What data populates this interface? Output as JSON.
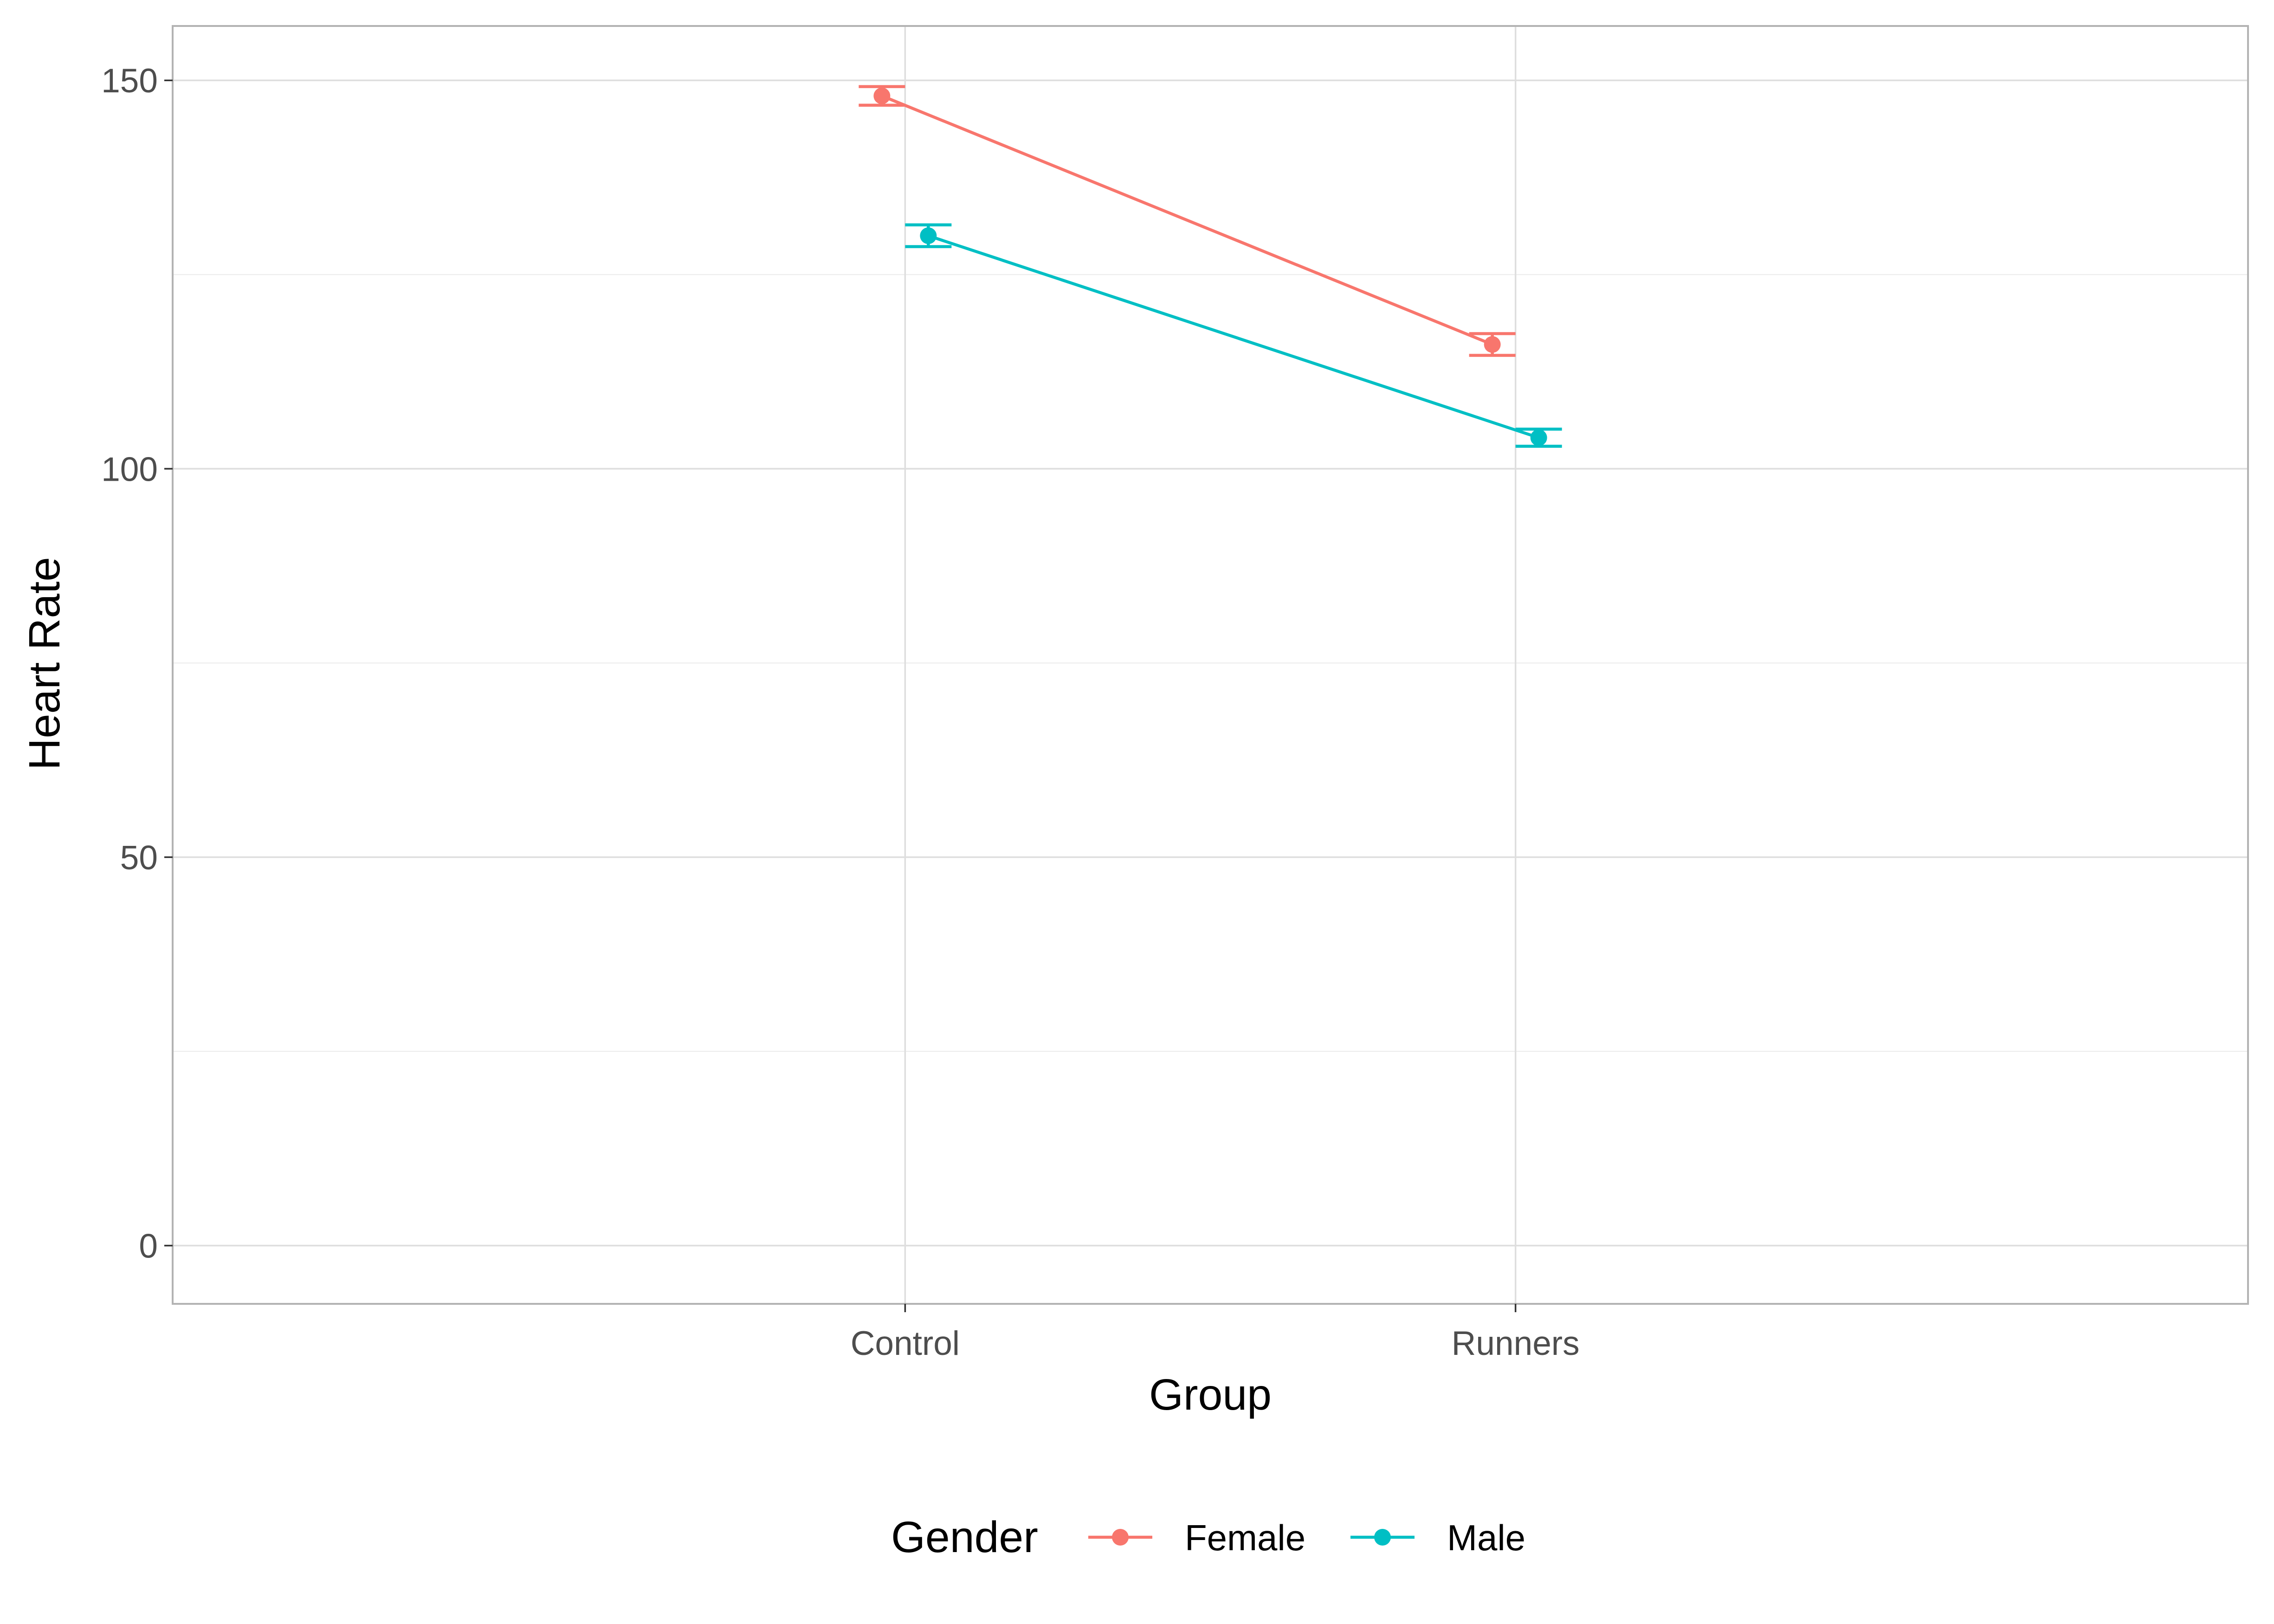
{
  "chart_data": {
    "type": "line",
    "title": "",
    "xlabel": "Group",
    "ylabel": "Heart Rate",
    "categories": [
      "Control",
      "Runners"
    ],
    "ylim": [
      -7.5,
      157
    ],
    "y_ticks": [
      "0",
      "50",
      "100",
      "150"
    ],
    "y_tick_values": [
      0,
      50,
      100,
      150
    ],
    "y_minor_gridlines": [
      25,
      75,
      125
    ],
    "grid": true,
    "legend": {
      "title": "Gender",
      "position": "bottom"
    },
    "error_bars": true,
    "series": [
      {
        "name": "Female",
        "color": "#F8766D",
        "values": [
          148.0,
          116.0
        ],
        "lower": [
          146.8,
          114.6
        ],
        "upper": [
          149.2,
          117.4
        ]
      },
      {
        "name": "Male",
        "color": "#00BFC4",
        "values": [
          130.0,
          104.0
        ],
        "lower": [
          128.6,
          102.9
        ],
        "upper": [
          131.4,
          105.1
        ]
      }
    ]
  }
}
